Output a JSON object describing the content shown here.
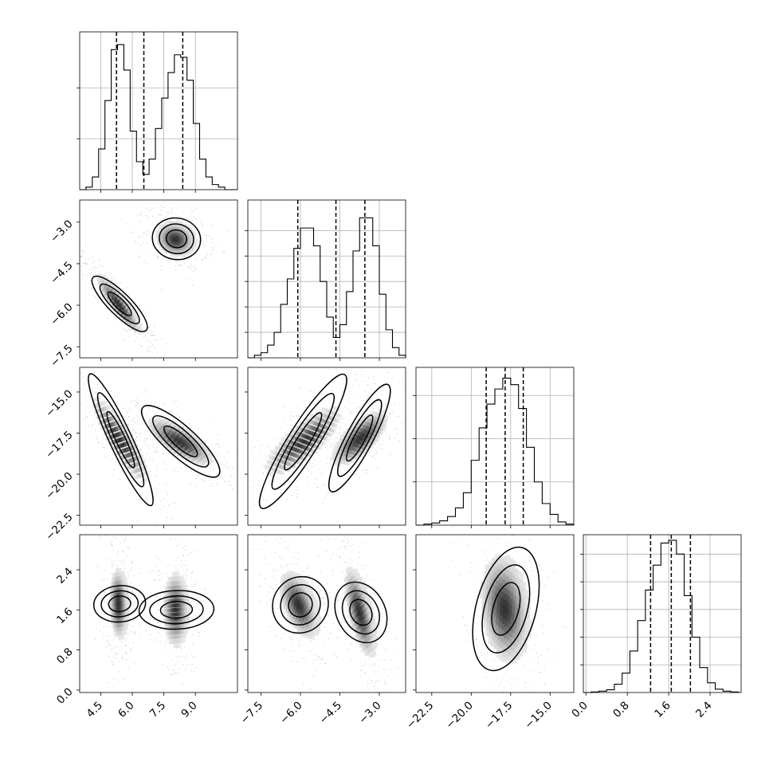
{
  "chart_data": {
    "type": "corner",
    "parameters": [
      {
        "range": [
          3.5,
          11.0
        ],
        "ticks": [
          4.5,
          6.0,
          7.5,
          9.0
        ],
        "tick_labels": [
          "4.5",
          "6.0",
          "7.5",
          "9.0"
        ],
        "quantiles": [
          5.25,
          6.55,
          8.4
        ],
        "histogram": {
          "bin_edges": [
            3.5,
            3.8,
            4.1,
            4.4,
            4.7,
            5.0,
            5.3,
            5.6,
            5.9,
            6.2,
            6.5,
            6.8,
            7.1,
            7.4,
            7.7,
            8.0,
            8.3,
            8.6,
            8.9,
            9.2,
            9.5,
            9.8,
            10.1,
            10.4,
            10.7,
            11.0
          ],
          "counts": [
            0,
            0.1,
            0.5,
            1.6,
            3.5,
            5.5,
            5.7,
            4.7,
            2.3,
            1.1,
            0.6,
            1.2,
            2.4,
            3.6,
            4.6,
            5.3,
            5.2,
            4.3,
            2.6,
            1.2,
            0.5,
            0.2,
            0.1,
            0,
            0
          ],
          "ylim": [
            0,
            6.2
          ],
          "grid_levels": [
            2,
            4
          ]
        }
      },
      {
        "range": [
          -8.0,
          -2.0
        ],
        "ticks": [
          -7.5,
          -6.0,
          -4.5,
          -3.0
        ],
        "tick_labels": [
          "−7.5",
          "−6.0",
          "−4.5",
          "−3.0"
        ],
        "quantiles": [
          -6.1,
          -4.65,
          -3.55
        ],
        "histogram": {
          "bin_edges": [
            -8.0,
            -7.75,
            -7.5,
            -7.25,
            -7.0,
            -6.75,
            -6.5,
            -6.25,
            -6.0,
            -5.75,
            -5.5,
            -5.25,
            -5.0,
            -4.75,
            -4.5,
            -4.25,
            -4.0,
            -3.75,
            -3.5,
            -3.25,
            -3.0,
            -2.75,
            -2.5,
            -2.25,
            -2.0
          ],
          "counts": [
            0,
            0.1,
            0.2,
            0.5,
            1.0,
            2.1,
            3.1,
            4.3,
            5.1,
            5.1,
            4.4,
            3.0,
            1.6,
            0.8,
            1.3,
            2.6,
            4.2,
            5.5,
            5.5,
            4.4,
            2.5,
            1.1,
            0.4,
            0.1
          ],
          "ylim": [
            0,
            6.2
          ],
          "grid_levels": [
            1,
            2,
            3,
            4,
            5
          ]
        }
      },
      {
        "range": [
          -23.5,
          -13.5
        ],
        "ticks": [
          -22.5,
          -20.0,
          -17.5,
          -15.0
        ],
        "tick_labels": [
          "−22.5",
          "−20.0",
          "−17.5",
          "−15.0"
        ],
        "quantiles": [
          -19.05,
          -17.85,
          -16.7
        ],
        "histogram": {
          "bin_edges": [
            -23.5,
            -23.0,
            -22.5,
            -22.0,
            -21.5,
            -21.0,
            -20.5,
            -20.0,
            -19.5,
            -19.0,
            -18.5,
            -18.0,
            -17.5,
            -17.0,
            -16.5,
            -16.0,
            -15.5,
            -15.0,
            -14.5,
            -14.0,
            -13.5
          ],
          "counts": [
            0,
            0.05,
            0.1,
            0.2,
            0.4,
            0.8,
            1.5,
            3.0,
            4.5,
            5.6,
            6.3,
            6.8,
            6.5,
            5.4,
            3.6,
            2.0,
            1.0,
            0.5,
            0.15,
            0.05
          ],
          "ylim": [
            0,
            7.3
          ],
          "grid_levels": [
            2,
            4,
            6
          ]
        }
      },
      {
        "range": [
          -0.05,
          3.0
        ],
        "ticks": [
          0.0,
          0.8,
          1.6,
          2.4
        ],
        "tick_labels": [
          "0.0",
          "0.8",
          "1.6",
          "2.4"
        ],
        "quantiles": [
          1.25,
          1.65,
          2.02
        ],
        "histogram": {
          "bin_edges": [
            -0.05,
            0.1,
            0.25,
            0.4,
            0.55,
            0.7,
            0.85,
            1.0,
            1.15,
            1.3,
            1.45,
            1.6,
            1.75,
            1.9,
            2.05,
            2.2,
            2.35,
            2.5,
            2.65,
            2.8,
            2.95
          ],
          "counts": [
            0,
            0.02,
            0.05,
            0.1,
            0.3,
            0.7,
            1.5,
            2.6,
            3.7,
            4.6,
            5.4,
            5.5,
            5.0,
            3.5,
            2.0,
            0.9,
            0.35,
            0.12,
            0.05,
            0.02
          ],
          "ylim": [
            0,
            5.7
          ],
          "grid_levels": [
            1,
            2,
            3,
            4,
            5
          ]
        }
      }
    ],
    "modes": [
      {
        "weight": 0.5,
        "mean": [
          5.4,
          -5.95,
          -17.9,
          1.72
        ]
      },
      {
        "weight": 0.5,
        "mean": [
          8.1,
          -3.65,
          -17.85,
          1.6
        ]
      }
    ],
    "pair_plots": [
      {
        "row": 1,
        "col": 0,
        "ylim": [
          -7.9,
          -2.2
        ],
        "ellipses": [
          {
            "cx": 5.4,
            "cy": -5.95,
            "rx": 1.55,
            "ry": 0.35,
            "angle": -45
          },
          {
            "cx": 8.1,
            "cy": -3.6,
            "rx": 1.0,
            "ry": 0.65,
            "angle": -10
          }
        ]
      },
      {
        "row": 2,
        "col": 0,
        "ylim": [
          -23.1,
          -13.5
        ],
        "ellipses": [
          {
            "cx": 5.45,
            "cy": -17.9,
            "rx": 3.0,
            "ry": 0.6,
            "angle": -65
          },
          {
            "cx": 8.3,
            "cy": -18.0,
            "rx": 2.1,
            "ry": 0.8,
            "angle": -42
          }
        ]
      },
      {
        "row": 2,
        "col": 1,
        "ylim": [
          -23.1,
          -13.5
        ],
        "ellipses": [
          {
            "cx": -5.9,
            "cy": -18.0,
            "rx": 2.6,
            "ry": 0.8,
            "angle": 58
          },
          {
            "cx": -3.75,
            "cy": -17.8,
            "rx": 2.0,
            "ry": 0.7,
            "angle": 62
          }
        ]
      },
      {
        "row": 3,
        "col": 0,
        "ylim": [
          -0.05,
          3.1
        ],
        "ellipses": [
          {
            "cx": 5.4,
            "cy": 1.72,
            "rx": 0.75,
            "ry": 0.45,
            "angle": -85
          },
          {
            "cx": 8.1,
            "cy": 1.6,
            "rx": 0.8,
            "ry": 0.65,
            "angle": -88
          }
        ]
      },
      {
        "row": 3,
        "col": 1,
        "ylim": [
          -0.05,
          3.1
        ],
        "ellipses": [
          {
            "cx": -6.0,
            "cy": 1.7,
            "rx": 0.9,
            "ry": 0.5,
            "angle": -40
          },
          {
            "cx": -3.7,
            "cy": 1.55,
            "rx": 1.05,
            "ry": 0.42,
            "angle": -62
          }
        ]
      },
      {
        "row": 3,
        "col": 2,
        "ylim": [
          -0.05,
          3.1
        ],
        "ellipses": [
          {
            "cx": -17.8,
            "cy": 1.62,
            "rx": 1.65,
            "ry": 1.1,
            "angle": -15
          }
        ]
      }
    ],
    "contour_levels": [
      0.3,
      0.55,
      0.8
    ],
    "density_levels": [
      0.35,
      0.6,
      0.8,
      0.95
    ]
  }
}
